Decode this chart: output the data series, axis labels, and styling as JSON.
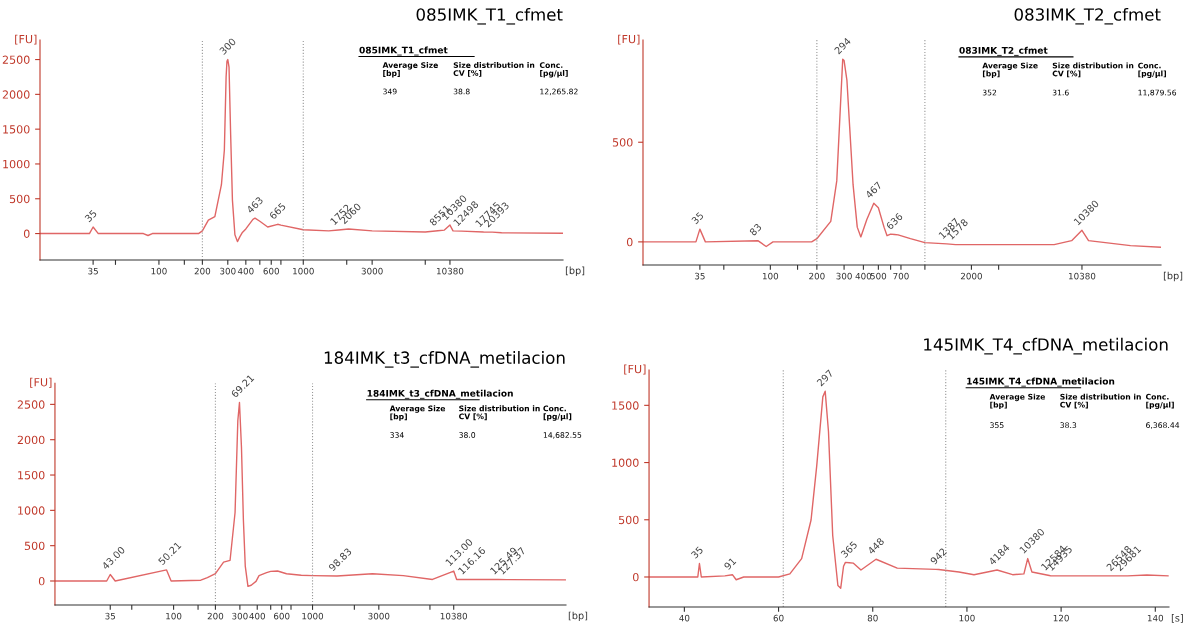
{
  "chart_data": [
    {
      "type": "line",
      "title": "085IMK_T1_cfmet",
      "xlabel": "[bp]",
      "ylabel": "[FU]",
      "log": "x",
      "series": [
        {
          "color": "#e06666",
          "x": [
            15,
            33,
            35,
            38,
            78,
            84,
            90,
            188,
            200,
            220,
            244,
            271,
            284,
            292,
            296,
            300,
            306,
            314,
            323,
            336,
            350,
            364,
            377,
            400,
            448,
            463,
            500,
            567,
            665,
            700,
            1000,
            1500,
            1752,
            2060,
            3000,
            7000,
            8551,
            9500,
            10380,
            10900,
            12498,
            17745,
            20393,
            23650,
            63000
          ],
          "values": [
            0,
            0,
            94,
            0,
            0,
            -28,
            0,
            0,
            39,
            194,
            243,
            702,
            1200,
            2250,
            2475,
            2500,
            2390,
            1420,
            481,
            -17,
            -116,
            -44,
            11,
            66,
            205,
            221,
            177,
            94,
            133,
            122,
            55,
            39,
            52,
            66,
            39,
            22,
            40,
            50,
            122,
            39,
            35,
            22,
            20,
            11,
            5
          ]
        }
      ],
      "xlim": [
        15,
        63000
      ],
      "ylim": [
        -380,
        2780
      ],
      "xticks": [
        35,
        {
          "value": 50,
          "label": null
        },
        100,
        {
          "value": 150,
          "label": null
        },
        200,
        300,
        400,
        {
          "value": 500,
          "label": null
        },
        600,
        {
          "value": 700,
          "label": null
        },
        1000,
        {
          "value": 2000,
          "label": null
        },
        3000,
        {
          "value": 7000,
          "label": null
        },
        10380
      ],
      "yticks": [
        0,
        500,
        1000,
        1500,
        2000,
        2500
      ],
      "ref_lines": [
        {
          "axis": "x",
          "value": 200,
          "color": "#999999",
          "line_style": "dotted"
        },
        {
          "axis": "x",
          "value": 1000,
          "color": "#999999",
          "line_style": "dotted"
        }
      ],
      "annotations": [
        "085IMK_T1_cfmet",
        "Average Size\n[bp]",
        "Size distribution in\nCV [%]",
        "Conc.\n[pg/µl]",
        "349",
        "38.8",
        "12,265.82",
        {
          "text": "35",
          "x": 35,
          "y": 94
        },
        {
          "text": "300",
          "x": 300,
          "y": 2500
        },
        {
          "text": "463",
          "x": 463,
          "y": 221
        },
        {
          "text": "665",
          "x": 665,
          "y": 133
        },
        {
          "text": "1752",
          "x": 1752,
          "y": 52
        },
        {
          "text": "2060",
          "x": 2060,
          "y": 66
        },
        {
          "text": "8551",
          "x": 8551,
          "y": 40
        },
        {
          "text": "10380",
          "x": 10380,
          "y": 122
        },
        {
          "text": "12498",
          "x": 12498,
          "y": 35
        },
        {
          "text": "17745",
          "x": 17745,
          "y": 22
        },
        {
          "text": "20393",
          "x": 20393,
          "y": 20
        }
      ]
    },
    {
      "type": "line",
      "title": "083IMK_T2_cfmet",
      "xlabel": "[bp]",
      "ylabel": "[FU]",
      "log": "x",
      "series": [
        {
          "color": "#e06666",
          "x": [
            15,
            33,
            35,
            38,
            83,
            94,
            104,
            185,
            200,
            246,
            269,
            294,
            300,
            313,
            326,
            343,
            365,
            385,
            421,
            467,
            500,
            544,
            569,
            600,
            636,
            671,
            806,
            1000,
            1387,
            1578,
            6860,
            8900,
            10380,
            11450,
            21400,
            33700
          ],
          "values": [
            0,
            0,
            64,
            0,
            6,
            -23,
            0,
            0,
            16,
            103,
            306,
            917,
            910,
            810,
            578,
            287,
            74,
            25,
            112,
            194,
            171,
            74,
            31,
            39,
            37,
            35,
            16,
            -4,
            -10,
            -14,
            -14,
            6,
            58,
            6,
            -19,
            -27
          ]
        }
      ],
      "xlim": [
        15,
        33700
      ],
      "ylim": [
        -116,
        1013
      ],
      "xticks": [
        35,
        {
          "value": 50,
          "label": null
        },
        100,
        {
          "value": 150,
          "label": null
        },
        200,
        300,
        400,
        500,
        {
          "value": 600,
          "label": null
        },
        700,
        {
          "value": 1000,
          "label": null
        },
        2000,
        {
          "value": 3000,
          "label": null
        },
        10380
      ],
      "yticks": [
        0,
        500
      ],
      "ref_lines": [
        {
          "axis": "x",
          "value": 200,
          "color": "#999999",
          "line_style": "dotted"
        },
        {
          "axis": "x",
          "value": 1000,
          "color": "#999999",
          "line_style": "dotted"
        }
      ],
      "annotations": [
        "083IMK_T2_cfmet",
        "Average Size\n[bp]",
        "Size distribution in\nCV [%]",
        "Conc.\n[pg/µl]",
        "352",
        "31.6",
        "11,879.56",
        {
          "text": "35",
          "x": 35,
          "y": 64
        },
        {
          "text": "83",
          "x": 83,
          "y": 6
        },
        {
          "text": "294",
          "x": 294,
          "y": 917
        },
        {
          "text": "467",
          "x": 467,
          "y": 194
        },
        {
          "text": "636",
          "x": 636,
          "y": 37
        },
        {
          "text": "1387",
          "x": 1387,
          "y": -10
        },
        {
          "text": "1578",
          "x": 1578,
          "y": -14
        },
        {
          "text": "10380",
          "x": 10380,
          "y": 58
        }
      ]
    },
    {
      "type": "line",
      "title": "184IMK_t3_cfDNA_metilacion",
      "xlabel": "[bp]",
      "ylabel": "[FU]",
      "log": "x",
      "series": [
        {
          "color": "#e06666",
          "x": [
            14,
            33,
            35,
            38,
            89,
            96,
            157,
            175,
            200,
            229,
            255,
            277,
            290,
            298,
            308,
            318,
            328,
            343,
            362,
            392,
            412,
            467,
            500,
            560,
            650,
            830,
            1000,
            1500,
            2700,
            4500,
            7300,
            10380,
            10900,
            12800,
            18100,
            21750,
            24900,
            66700
          ],
          "values": [
            0,
            0,
            92,
            0,
            157,
            0,
            11,
            49,
            103,
            266,
            293,
            970,
            2271,
            2526,
            1892,
            862,
            211,
            -76,
            -60,
            -5,
            76,
            119,
            136,
            141,
            103,
            81,
            76,
            70,
            103,
            76,
            22,
            141,
            22,
            22,
            22,
            22,
            20,
            16
          ]
        }
      ],
      "xlim": [
        14,
        66700
      ],
      "ylim": [
        -340,
        2800
      ],
      "xticks": [
        35,
        {
          "value": 50,
          "label": null
        },
        100,
        {
          "value": 150,
          "label": null
        },
        200,
        300,
        400,
        {
          "value": 500,
          "label": null
        },
        600,
        {
          "value": 700,
          "label": null
        },
        1000,
        {
          "value": 2000,
          "label": null
        },
        3000,
        {
          "value": 7000,
          "label": null
        },
        10380
      ],
      "yticks": [
        0,
        500,
        1000,
        1500,
        2000,
        2500
      ],
      "ref_lines": [
        {
          "axis": "x",
          "value": 200,
          "color": "#999999",
          "line_style": "dotted"
        },
        {
          "axis": "x",
          "value": 1000,
          "color": "#999999",
          "line_style": "dotted"
        }
      ],
      "annotations": [
        "184IMK_t3_cfDNA_metilacion",
        "Average Size\n[bp]",
        "Size distribution in\nCV [%]",
        "Conc.\n[pg/µl]",
        "334",
        "38.0",
        "14,682.55",
        {
          "text": "43.00",
          "x": 35,
          "y": 92
        },
        {
          "text": "50.21",
          "x": 89,
          "y": 157
        },
        {
          "text": "69.21",
          "x": 298,
          "y": 2526
        },
        {
          "text": "98.83",
          "x": 1500,
          "y": 70
        },
        {
          "text": "113.00",
          "x": 10380,
          "y": 141
        },
        {
          "text": "116.16",
          "x": 12800,
          "y": 22
        },
        {
          "text": "125.49",
          "x": 21750,
          "y": 22
        },
        {
          "text": "127.37",
          "x": 24900,
          "y": 20
        }
      ]
    },
    {
      "type": "line",
      "title": "145IMK_T4_cfDNA_metilacion",
      "xlabel": "[s]",
      "ylabel": "[FU]",
      "series": [
        {
          "color": "#e06666",
          "x": [
            32.5,
            42.85,
            43.2,
            43.6,
            48.6,
            50.2,
            51.0,
            52.6,
            60,
            62.4,
            64.9,
            66.9,
            68.1,
            69.4,
            69.9,
            70.6,
            71.5,
            72.6,
            73.2,
            73.8,
            74.2,
            75,
            75.9,
            77.5,
            80.7,
            85.2,
            93.4,
            94,
            98.3,
            101.5,
            106.4,
            109.7,
            112.1,
            112.9,
            113.8,
            117.5,
            117.8,
            118.8,
            131.4,
            133.4,
            134.1,
            138.2,
            142.7
          ],
          "values": [
            0,
            0,
            118,
            0,
            10,
            20,
            -24,
            0,
            0,
            27,
            161,
            498,
            969,
            1574,
            1624,
            1271,
            363,
            -74,
            -98,
            94,
            128,
            125,
            121,
            61,
            155,
            77,
            67,
            66,
            44,
            20,
            61,
            20,
            27,
            161,
            44,
            13,
            10,
            10,
            10,
            10,
            10,
            17,
            10
          ]
        }
      ],
      "xlim": [
        32.5,
        142.9
      ],
      "ylim": [
        -262,
        1809
      ],
      "xticks": [
        40,
        60,
        80,
        100,
        120,
        140
      ],
      "yticks": [
        0,
        500,
        1000,
        1500
      ],
      "ref_lines": [
        {
          "axis": "x",
          "value": 61,
          "color": "#999999",
          "line_style": "dotted"
        },
        {
          "axis": "x",
          "value": 95.5,
          "color": "#999999",
          "line_style": "dotted"
        }
      ],
      "annotations": [
        "145IMK_T4_cfDNA_metilacion",
        "Average Size\n[bp]",
        "Size distribution in\nCV [%]",
        "Conc.\n[pg/µl]",
        "355",
        "38.3",
        "6,368.44",
        {
          "text": "35",
          "x": 43.2,
          "y": 118
        },
        {
          "text": "91",
          "x": 50.2,
          "y": 20
        },
        {
          "text": "297",
          "x": 69.9,
          "y": 1624
        },
        {
          "text": "365",
          "x": 75,
          "y": 125
        },
        {
          "text": "448",
          "x": 80.7,
          "y": 155
        },
        {
          "text": "942",
          "x": 94,
          "y": 66
        },
        {
          "text": "4184",
          "x": 106.4,
          "y": 61
        },
        {
          "text": "10380",
          "x": 112.9,
          "y": 161
        },
        {
          "text": "12584",
          "x": 117.5,
          "y": 13
        },
        {
          "text": "14935",
          "x": 118.8,
          "y": 10
        },
        {
          "text": "26548",
          "x": 131.4,
          "y": 10
        },
        {
          "text": "29681",
          "x": 133.4,
          "y": 10
        }
      ]
    }
  ]
}
